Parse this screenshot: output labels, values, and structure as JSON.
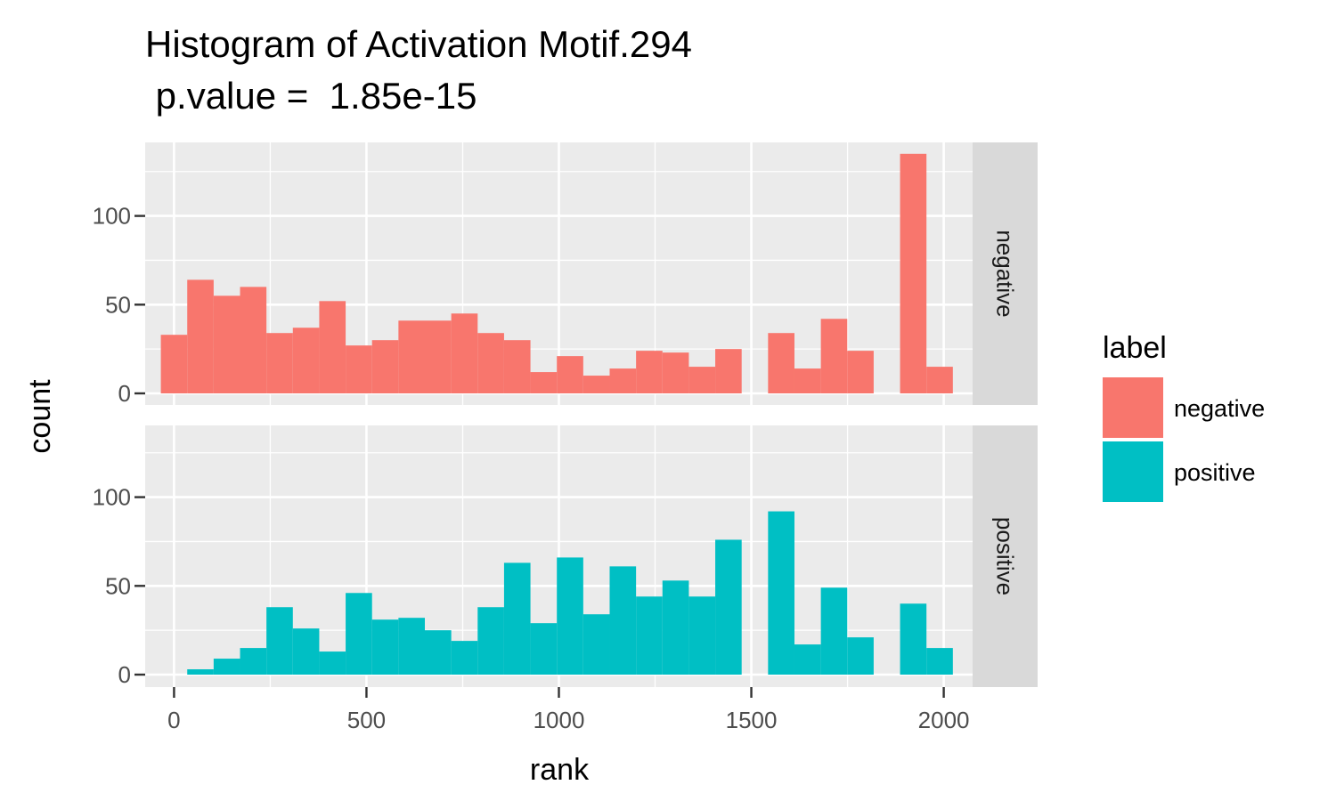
{
  "chart_data": {
    "type": "histogram",
    "title": "Histogram of Activation Motif.294",
    "subtitle": " p.value =  1.85e-15",
    "xlabel": "rank",
    "ylabel": "count",
    "xlim": [
      -75,
      2075
    ],
    "ylim": [
      -6,
      136
    ],
    "x_ticks": [
      0,
      500,
      1000,
      1500,
      2000
    ],
    "x_tick_labels": [
      "0",
      "500",
      "1000",
      "1500",
      "2000"
    ],
    "y_ticks": [
      0,
      50,
      100
    ],
    "y_tick_labels": [
      "0",
      "50",
      "100"
    ],
    "bin_width": 68.6,
    "bin_centers": [
      0,
      68.6,
      137.2,
      205.8,
      274.4,
      343,
      411.6,
      480.2,
      548.8,
      617.4,
      686,
      754.6,
      823.2,
      891.8,
      960.4,
      1029,
      1097.6,
      1166.2,
      1234.8,
      1303.4,
      1372,
      1440.6,
      1509.2,
      1577.8,
      1646.4,
      1715,
      1783.6,
      1852.2,
      1920.8,
      1989.4
    ],
    "legend": {
      "title": "label",
      "position": "right"
    },
    "grid": true,
    "facets": [
      {
        "name": "negative",
        "strip_label": "negative",
        "color": "#F8766D",
        "counts": [
          33,
          64,
          55,
          60,
          34,
          37,
          52,
          27,
          30,
          41,
          41,
          45,
          34,
          30,
          12,
          21,
          10,
          14,
          24,
          23,
          15,
          25,
          0,
          34,
          14,
          42,
          24,
          0,
          135,
          15
        ]
      },
      {
        "name": "positive",
        "strip_label": "positive",
        "color": "#00BFC4",
        "counts": [
          0,
          3,
          9,
          15,
          38,
          26,
          13,
          46,
          31,
          32,
          25,
          19,
          38,
          63,
          29,
          66,
          34,
          61,
          44,
          53,
          44,
          76,
          0,
          92,
          17,
          49,
          21,
          0,
          40,
          15
        ]
      }
    ],
    "colors": {
      "panel_bg": "#EBEBEB",
      "grid": "#FFFFFF",
      "strip_bg": "#D9D9D9"
    }
  }
}
